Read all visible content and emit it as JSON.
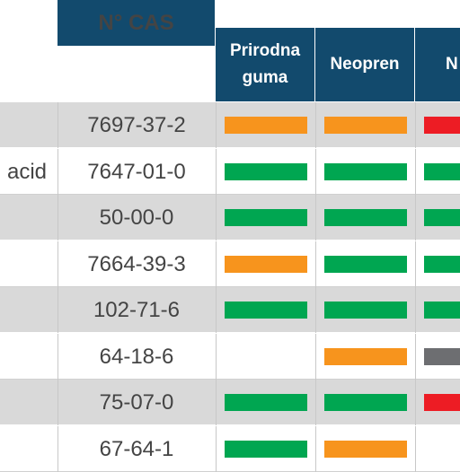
{
  "colors": {
    "header_bg": "#124a6d",
    "green": "#00a651",
    "orange": "#f7941d",
    "red": "#ed1c24",
    "gray": "#6d6e71"
  },
  "header": {
    "cas": "N° CAS",
    "col1": "Prirodna guma",
    "col2": "Neopren",
    "col3": "N"
  },
  "rows": [
    {
      "name": "",
      "cas": "7697-37-2",
      "ratings": [
        "orange",
        "orange",
        "red"
      ]
    },
    {
      "name": "acid",
      "cas": "7647-01-0",
      "ratings": [
        "green",
        "green",
        "green"
      ]
    },
    {
      "name": "",
      "cas": "50-00-0",
      "ratings": [
        "green",
        "green",
        "green"
      ]
    },
    {
      "name": "",
      "cas": "7664-39-3",
      "ratings": [
        "orange",
        "green",
        "green"
      ]
    },
    {
      "name": "",
      "cas": "102-71-6",
      "ratings": [
        "green",
        "green",
        "green"
      ]
    },
    {
      "name": "",
      "cas": "64-18-6",
      "ratings": [
        "",
        "orange",
        "gray"
      ]
    },
    {
      "name": "",
      "cas": "75-07-0",
      "ratings": [
        "green",
        "green",
        "red"
      ]
    },
    {
      "name": "",
      "cas": "67-64-1",
      "ratings": [
        "green",
        "orange",
        ""
      ]
    }
  ]
}
